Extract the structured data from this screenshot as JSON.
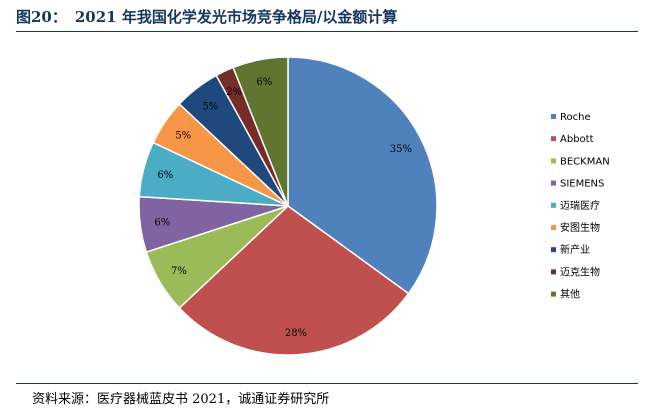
{
  "figure": {
    "label": "图20：",
    "title": "2021 年我国化学发光市场竞争格局/以金额计算",
    "source": "资料来源：医疗器械蓝皮书 2021，诚通证券研究所"
  },
  "chart_data": {
    "type": "pie",
    "title": "",
    "legend_position": "right",
    "slices": [
      {
        "name": "Roche",
        "value": 35,
        "label": "35%",
        "color": "#4f81bd"
      },
      {
        "name": "Abbott",
        "value": 28,
        "label": "28%",
        "color": "#c0504d"
      },
      {
        "name": "BECKMAN",
        "value": 7,
        "label": "7%",
        "color": "#9bbb59"
      },
      {
        "name": "SIEMENS",
        "value": 6,
        "label": "6%",
        "color": "#8064a2"
      },
      {
        "name": "迈瑞医疗",
        "value": 6,
        "label": "6%",
        "color": "#4bacc6"
      },
      {
        "name": "安图生物",
        "value": 5,
        "label": "5%",
        "color": "#f79646"
      },
      {
        "name": "新产业",
        "value": 5,
        "label": "5%",
        "color": "#1f497d"
      },
      {
        "name": "迈克生物",
        "value": 2,
        "label": "2%",
        "color": "#772c2a"
      },
      {
        "name": "其他",
        "value": 6,
        "label": "6%",
        "color": "#5f7530"
      }
    ]
  }
}
